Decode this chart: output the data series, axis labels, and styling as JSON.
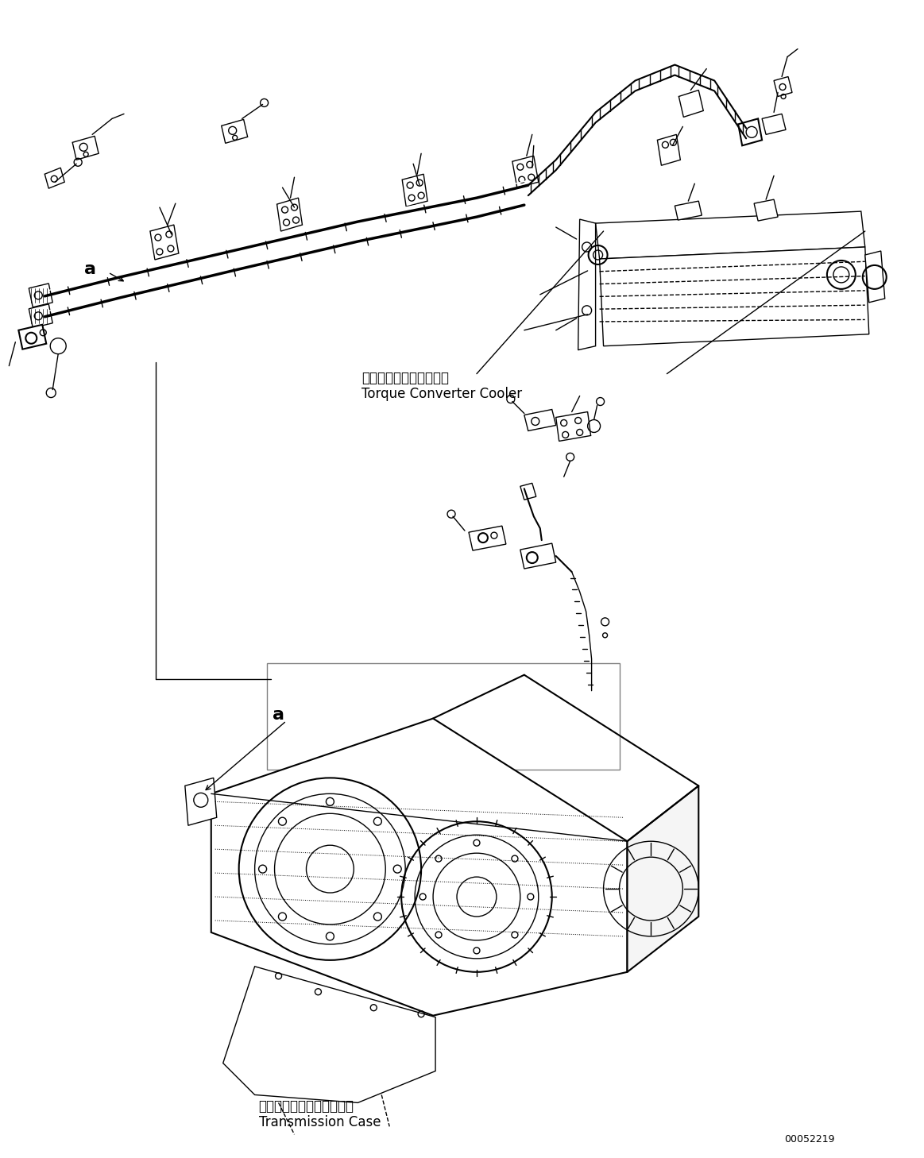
{
  "bg_color": "#ffffff",
  "line_color": "#000000",
  "figsize": [
    11.63,
    14.58
  ],
  "dpi": 100,
  "label_torque_converter_jp": "トルクコンバータクーラ",
  "label_torque_converter_en": "Torque Converter Cooler",
  "label_transmission_jp": "トランスミッションケース",
  "label_transmission_en": "Transmission Case",
  "label_a1": "a",
  "label_a2": "a",
  "part_number": "00052219",
  "font_size_label": 12,
  "font_size_part": 9,
  "font_size_a": 16
}
